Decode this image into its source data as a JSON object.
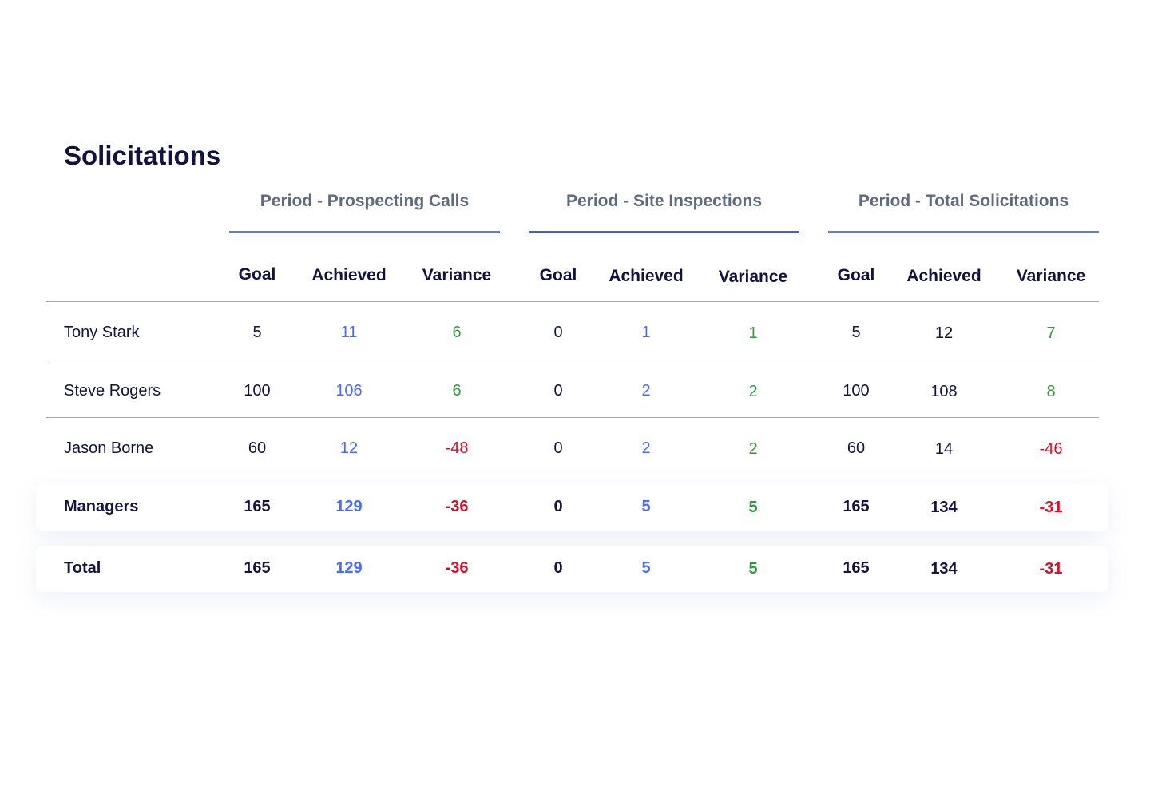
{
  "title": "Solicitations",
  "groups": [
    "Period - Prospecting Calls",
    "Period - Site Inspections",
    "Period - Total Solicitations"
  ],
  "subheaders": [
    "Goal",
    "Achieved",
    "Variance",
    "Goal",
    "Achieved",
    "Variance",
    "Goal",
    "Achieved",
    "Variance"
  ],
  "colors": {
    "text": "#14143f",
    "blue": "#4a6cf7",
    "green": "#2e9a3c",
    "red": "#d4102c",
    "underline": "#5b7be8"
  },
  "rows": [
    {
      "name": "Tony Stark",
      "values": [
        "5",
        "11",
        "6",
        "0",
        "1",
        "1",
        "5",
        "12",
        "7"
      ]
    },
    {
      "name": "Steve Rogers",
      "values": [
        "100",
        "106",
        "6",
        "0",
        "2",
        "2",
        "100",
        "108",
        "8"
      ]
    },
    {
      "name": "Jason Borne",
      "values": [
        "60",
        "12",
        "-48",
        "0",
        "2",
        "2",
        "60",
        "14",
        "-46"
      ]
    }
  ],
  "summary_rows": [
    {
      "name": "Managers",
      "values": [
        "165",
        "129",
        "-36",
        "0",
        "5",
        "5",
        "165",
        "134",
        "-31"
      ]
    },
    {
      "name": "Total",
      "values": [
        "165",
        "129",
        "-36",
        "0",
        "5",
        "5",
        "165",
        "134",
        "-31"
      ]
    }
  ]
}
